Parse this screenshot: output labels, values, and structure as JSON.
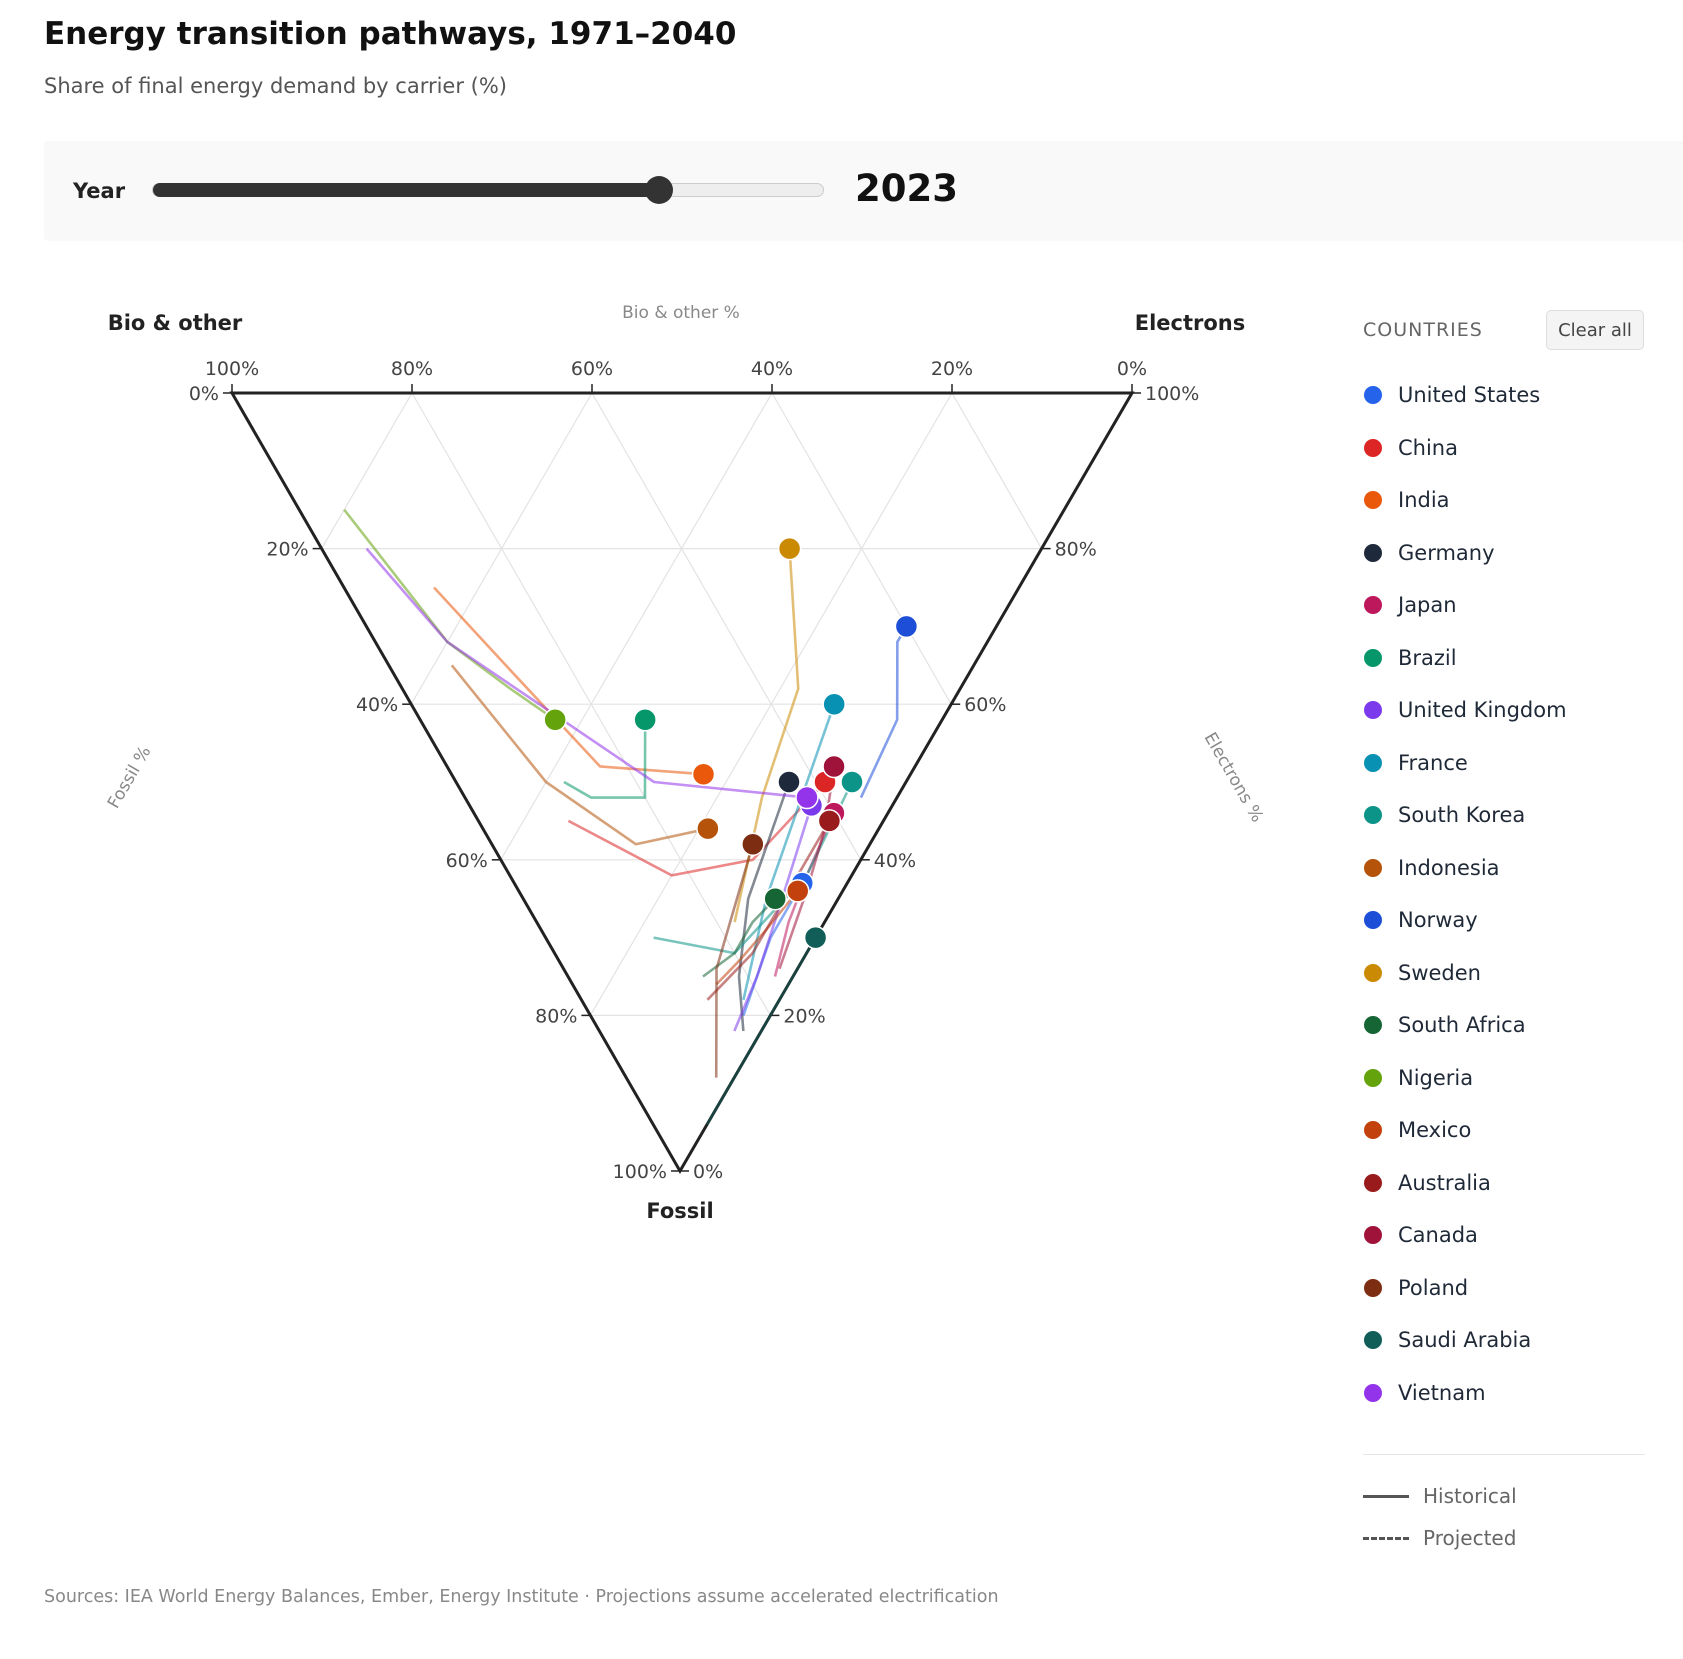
{
  "header": {
    "title": "Energy transition pathways, 1971–2040",
    "subtitle": "Share of final energy demand by carrier (%)"
  },
  "controls": {
    "year_label": "Year",
    "year_min": 1971,
    "year_max": 2040,
    "year_value": "2023",
    "slider_color": "#333333"
  },
  "legend": {
    "title": "COUNTRIES",
    "clear_label": "Clear all",
    "historical_label": "Historical",
    "projected_label": "Projected"
  },
  "footer": {
    "sources": "Sources: IEA World Energy Balances, Ember, Energy Institute · Projections assume accelerated electrification"
  },
  "chart_data": {
    "type": "ternary",
    "axes": {
      "bio": {
        "corner_label": "Bio & other",
        "axis_title": "Bio & other %"
      },
      "electrons": {
        "corner_label": "Electrons",
        "axis_title": "Electrons %"
      },
      "fossil": {
        "corner_label": "Fossil",
        "axis_title": "Fossil %"
      }
    },
    "ticks": [
      "0%",
      "20%",
      "40%",
      "60%",
      "80%",
      "100%"
    ],
    "tick_values": [
      0,
      20,
      40,
      60,
      80,
      100
    ],
    "grid": true,
    "legend_position": "right",
    "current_year": 2023,
    "point_order": [
      "year",
      "fossil",
      "electrons",
      "bio"
    ],
    "series": [
      {
        "name": "United States",
        "color": "#2563eb",
        "points": [
          [
            1971,
            80,
            17,
            3
          ],
          [
            1990,
            75,
            21,
            4
          ],
          [
            2005,
            70,
            25,
            5
          ],
          [
            2023,
            63,
            32,
            5
          ]
        ]
      },
      {
        "name": "China",
        "color": "#dc2626",
        "points": [
          [
            1971,
            55,
            10,
            35
          ],
          [
            1990,
            62,
            18,
            20
          ],
          [
            2005,
            60,
            28,
            12
          ],
          [
            2023,
            50,
            41,
            9
          ]
        ]
      },
      {
        "name": "India",
        "color": "#ea580c",
        "points": [
          [
            1971,
            25,
            10,
            65
          ],
          [
            1990,
            35,
            13,
            52
          ],
          [
            2005,
            48,
            17,
            35
          ],
          [
            2023,
            49,
            28,
            23
          ]
        ]
      },
      {
        "name": "Germany",
        "color": "#1e293b",
        "points": [
          [
            1971,
            82,
            16,
            2
          ],
          [
            1990,
            75,
            19,
            6
          ],
          [
            2005,
            65,
            25,
            10
          ],
          [
            2023,
            50,
            37,
            13
          ]
        ]
      },
      {
        "name": "Japan",
        "color": "#be185d",
        "points": [
          [
            1971,
            75,
            23,
            2
          ],
          [
            1990,
            68,
            28,
            4
          ],
          [
            2005,
            62,
            33,
            5
          ],
          [
            2023,
            54,
            40,
            6
          ]
        ]
      },
      {
        "name": "Brazil",
        "color": "#059669",
        "points": [
          [
            1971,
            50,
            12,
            38
          ],
          [
            1990,
            52,
            14,
            34
          ],
          [
            2005,
            52,
            20,
            28
          ],
          [
            2023,
            42,
            25,
            33
          ]
        ]
      },
      {
        "name": "United Kingdom",
        "color": "#7c3aed",
        "points": [
          [
            1971,
            82,
            15,
            3
          ],
          [
            1990,
            75,
            21,
            4
          ],
          [
            2005,
            66,
            28,
            6
          ],
          [
            2023,
            53,
            38,
            9
          ]
        ]
      },
      {
        "name": "France",
        "color": "#0891b2",
        "points": [
          [
            1971,
            78,
            18,
            4
          ],
          [
            1990,
            65,
            27,
            8
          ],
          [
            2005,
            55,
            35,
            10
          ],
          [
            2023,
            40,
            47,
            13
          ]
        ]
      },
      {
        "name": "South Korea",
        "color": "#0d9488",
        "points": [
          [
            1971,
            70,
            12,
            18
          ],
          [
            1990,
            72,
            20,
            8
          ],
          [
            2005,
            62,
            33,
            5
          ],
          [
            2023,
            50,
            44,
            6
          ]
        ]
      },
      {
        "name": "Indonesia",
        "color": "#b45309",
        "points": [
          [
            1971,
            35,
            7,
            58
          ],
          [
            1990,
            50,
            10,
            40
          ],
          [
            2005,
            58,
            16,
            26
          ],
          [
            2023,
            56,
            25,
            19
          ]
        ]
      },
      {
        "name": "Norway",
        "color": "#1d4ed8",
        "points": [
          [
            1971,
            52,
            44,
            4
          ],
          [
            1990,
            42,
            53,
            5
          ],
          [
            2005,
            32,
            58,
            10
          ],
          [
            2023,
            30,
            60,
            10
          ]
        ]
      },
      {
        "name": "Sweden",
        "color": "#ca8a04",
        "points": [
          [
            1971,
            68,
            22,
            10
          ],
          [
            1990,
            52,
            33,
            15
          ],
          [
            2005,
            38,
            44,
            18
          ],
          [
            2023,
            20,
            52,
            28
          ]
        ]
      },
      {
        "name": "South Africa",
        "color": "#166534",
        "points": [
          [
            1971,
            75,
            15,
            10
          ],
          [
            1990,
            72,
            20,
            8
          ],
          [
            2005,
            68,
            24,
            8
          ],
          [
            2023,
            65,
            28,
            7
          ]
        ]
      },
      {
        "name": "Nigeria",
        "color": "#65a30d",
        "points": [
          [
            1971,
            15,
            5,
            80
          ],
          [
            1990,
            32,
            8,
            60
          ],
          [
            2005,
            38,
            12,
            50
          ],
          [
            2023,
            42,
            15,
            43
          ]
        ]
      },
      {
        "name": "Mexico",
        "color": "#c2410c",
        "points": [
          [
            1971,
            76,
            16,
            8
          ],
          [
            1990,
            73,
            20,
            7
          ],
          [
            2005,
            69,
            25,
            6
          ],
          [
            2023,
            64,
            31,
            5
          ]
        ]
      },
      {
        "name": "Australia",
        "color": "#991b1b",
        "points": [
          [
            1971,
            78,
            14,
            8
          ],
          [
            1990,
            72,
            22,
            6
          ],
          [
            2005,
            60,
            34,
            6
          ],
          [
            2023,
            55,
            39,
            6
          ]
        ]
      },
      {
        "name": "Canada",
        "color": "#9f1239",
        "points": [
          [
            1971,
            74,
            24,
            2
          ],
          [
            1990,
            64,
            32,
            4
          ],
          [
            2005,
            56,
            38,
            6
          ],
          [
            2023,
            48,
            43,
            9
          ]
        ]
      },
      {
        "name": "Poland",
        "color": "#7c2d12",
        "points": [
          [
            1971,
            88,
            10,
            2
          ],
          [
            1990,
            82,
            13,
            5
          ],
          [
            2005,
            74,
            17,
            9
          ],
          [
            2023,
            58,
            29,
            13
          ]
        ]
      },
      {
        "name": "Saudi Arabia",
        "color": "#115e59",
        "points": [
          [
            1971,
            94,
            6,
            0
          ],
          [
            1990,
            85,
            15,
            0
          ],
          [
            2005,
            78,
            22,
            0
          ],
          [
            2023,
            70,
            30,
            0
          ]
        ]
      },
      {
        "name": "Vietnam",
        "color": "#9333ea",
        "points": [
          [
            1971,
            20,
            5,
            75
          ],
          [
            1990,
            32,
            8,
            60
          ],
          [
            2005,
            50,
            22,
            28
          ],
          [
            2023,
            52,
            38,
            10
          ]
        ]
      }
    ]
  }
}
